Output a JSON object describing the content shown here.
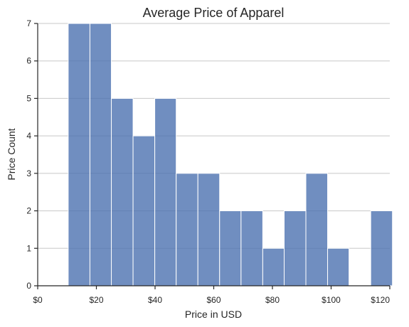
{
  "chart_data": {
    "type": "bar",
    "title": "Average Price of Apparel",
    "xlabel": "Price in USD",
    "ylabel": "Price Count",
    "xlim": [
      0,
      120
    ],
    "ylim": [
      0,
      7
    ],
    "grid": "y-only",
    "bin_edges": [
      10.4,
      17.8,
      25.1,
      32.5,
      39.9,
      47.2,
      54.6,
      62.0,
      69.3,
      76.7,
      84.0,
      91.4,
      98.8,
      106.1,
      113.5,
      120.9
    ],
    "values": [
      7,
      7,
      5,
      4,
      5,
      3,
      3,
      2,
      2,
      1,
      2,
      3,
      1,
      0,
      2
    ],
    "x_ticks": [
      0,
      20,
      40,
      60,
      80,
      100,
      120
    ],
    "x_tick_labels": [
      "$0",
      "$20",
      "$40",
      "$60",
      "$80",
      "$100",
      "$120"
    ],
    "y_ticks": [
      0,
      1,
      2,
      3,
      4,
      5,
      6,
      7
    ],
    "y_tick_labels": [
      "0",
      "1",
      "2",
      "3",
      "4",
      "5",
      "6",
      "7"
    ],
    "bar_color": "#4c72b0",
    "grid_color": "#c8c8c8",
    "axis_color": "#262626"
  }
}
